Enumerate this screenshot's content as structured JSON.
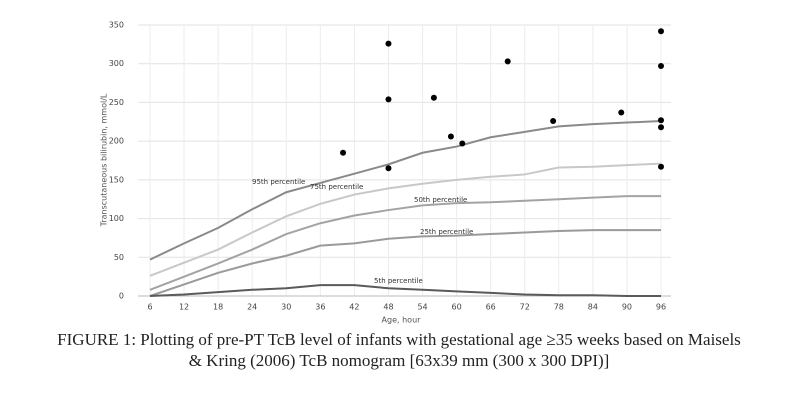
{
  "chart_data": {
    "type": "line",
    "xlabel": "Age, hour",
    "ylabel": "Transcutaneous bilirubin, mmol/L",
    "x": [
      6,
      12,
      18,
      24,
      30,
      36,
      42,
      48,
      54,
      60,
      66,
      72,
      78,
      84,
      90,
      96
    ],
    "xlim": [
      6,
      96
    ],
    "xticks": [
      6,
      12,
      18,
      24,
      30,
      36,
      42,
      48,
      54,
      60,
      66,
      72,
      78,
      84,
      90,
      96
    ],
    "ylim": [
      0,
      350
    ],
    "yticks": [
      0,
      50,
      100,
      150,
      200,
      250,
      300,
      350
    ],
    "grid": true,
    "series": [
      {
        "name": "95th percentile",
        "color": "#8a8a8a",
        "values": [
          47,
          68,
          88,
          112,
          134,
          146,
          158,
          170,
          185,
          193,
          205,
          212,
          219,
          222,
          224,
          226
        ]
      },
      {
        "name": "75th percentile",
        "color": "#c8c8c8",
        "values": [
          26,
          43,
          60,
          82,
          103,
          119,
          131,
          139,
          145,
          150,
          154,
          157,
          166,
          167,
          169,
          171
        ]
      },
      {
        "name": "50th percentile",
        "color": "#a3a3a3",
        "values": [
          8,
          25,
          42,
          60,
          80,
          94,
          104,
          111,
          117,
          120,
          121,
          123,
          125,
          127,
          129,
          129
        ]
      },
      {
        "name": "25th percentile",
        "color": "#9a9a9a",
        "values": [
          0,
          15,
          30,
          42,
          52,
          65,
          68,
          74,
          77,
          78,
          80,
          82,
          84,
          85,
          85,
          85
        ]
      },
      {
        "name": "5th percentile",
        "color": "#5a5a5a",
        "values": [
          0,
          2,
          5,
          8,
          10,
          14,
          14,
          10,
          8,
          6,
          4,
          2,
          1,
          1,
          0,
          0
        ]
      }
    ],
    "points": {
      "color": "#000000",
      "x": [
        40,
        48,
        48,
        48,
        56,
        59,
        61,
        69,
        77,
        89,
        96,
        96,
        96,
        96,
        96
      ],
      "y": [
        185,
        326,
        254,
        165,
        256,
        206,
        197,
        303,
        226,
        237,
        342,
        297,
        227,
        218,
        167
      ]
    },
    "caption": [
      "FIGURE 1: Plotting of pre-PT TcB level of infants with gestational age ≥35 weeks based on Maisels",
      "& Kring (2006) TcB nomogram [63x39 mm (300 x 300 DPI)]"
    ]
  }
}
